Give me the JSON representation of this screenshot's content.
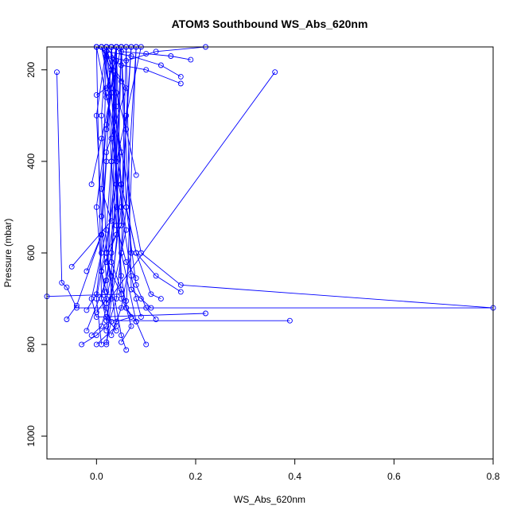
{
  "chart_data": {
    "type": "line",
    "title": "ATOM3 Southbound WS_Abs_620nm",
    "xlabel": "WS_Abs_620nm",
    "ylabel": "Pressure (mbar)",
    "xlim": [
      -0.1,
      0.8
    ],
    "ylim": [
      1050,
      150
    ],
    "y_reversed": true,
    "x_ticks": [
      0.0,
      0.2,
      0.4,
      0.6,
      0.8
    ],
    "x_tick_labels": [
      "0.0",
      "0.2",
      "0.4",
      "0.6",
      "0.8"
    ],
    "y_ticks": [
      200,
      400,
      600,
      800,
      1000
    ],
    "y_tick_labels": [
      "200",
      "400",
      "600",
      "800",
      "1000"
    ],
    "grid": false,
    "marker": "open-circle",
    "color": "#0000ff",
    "series": [
      {
        "x": [
          -0.08,
          -0.07,
          -0.06,
          -0.04,
          0.8,
          0.17,
          0.09,
          0.01
        ],
        "y": [
          205,
          665,
          675,
          720,
          720,
          670,
          600,
          150
        ]
      },
      {
        "x": [
          0.36,
          0.02,
          0.01,
          0.0,
          0.02,
          0.03,
          0.01
        ],
        "y": [
          205,
          710,
          640,
          500,
          330,
          250,
          150
        ]
      },
      {
        "x": [
          0.39,
          0.02,
          0.01,
          0.03,
          0.05,
          0.02,
          0.0
        ],
        "y": [
          748,
          748,
          700,
          600,
          380,
          260,
          150
        ]
      },
      {
        "x": [
          0.22,
          0.0,
          -0.01,
          0.02,
          0.03,
          0.04,
          0.03
        ],
        "y": [
          732,
          740,
          700,
          550,
          400,
          280,
          150
        ]
      },
      {
        "x": [
          -0.1,
          0.05,
          0.02,
          0.04,
          0.04
        ],
        "y": [
          695,
          690,
          620,
          500,
          150
        ]
      },
      {
        "x": [
          -0.06,
          -0.04,
          0.01,
          0.02,
          0.06,
          0.01
        ],
        "y": [
          745,
          715,
          560,
          380,
          240,
          150
        ]
      },
      {
        "x": [
          -0.05,
          0.03,
          0.01,
          0.02,
          0.04
        ],
        "y": [
          630,
          530,
          460,
          320,
          150
        ]
      },
      {
        "x": [
          0.0,
          0.04,
          0.02,
          0.01,
          0.02
        ],
        "y": [
          800,
          760,
          600,
          300,
          150
        ]
      },
      {
        "x": [
          0.02,
          0.03,
          0.05,
          0.02,
          0.04
        ],
        "y": [
          800,
          700,
          450,
          250,
          150
        ]
      },
      {
        "x": [
          0.01,
          0.0,
          0.04,
          0.03,
          0.05
        ],
        "y": [
          800,
          700,
          450,
          240,
          150
        ]
      },
      {
        "x": [
          -0.03,
          0.0,
          0.02,
          0.05,
          0.07
        ],
        "y": [
          800,
          780,
          760,
          500,
          150
        ]
      },
      {
        "x": [
          0.06,
          0.05,
          0.02,
          0.04,
          0.03
        ],
        "y": [
          812,
          780,
          600,
          400,
          150
        ]
      },
      {
        "x": [
          0.1,
          0.08,
          0.05,
          0.06,
          0.07
        ],
        "y": [
          800,
          750,
          600,
          300,
          150
        ]
      },
      {
        "x": [
          -0.02,
          0.02,
          0.01,
          0.0,
          0.02
        ],
        "y": [
          770,
          660,
          520,
          300,
          150
        ]
      },
      {
        "x": [
          0.04,
          0.02,
          0.06,
          0.03,
          0.04
        ],
        "y": [
          770,
          740,
          550,
          350,
          150
        ]
      },
      {
        "x": [
          0.08,
          0.06,
          0.05,
          0.04,
          0.09
        ],
        "y": [
          750,
          720,
          650,
          400,
          150
        ]
      },
      {
        "x": [
          0.09,
          0.08,
          0.07,
          0.05,
          0.04
        ],
        "y": [
          740,
          700,
          650,
          500,
          150
        ]
      },
      {
        "x": [
          0.12,
          0.1,
          0.08,
          0.06,
          0.05
        ],
        "y": [
          745,
          720,
          670,
          500,
          150
        ]
      },
      {
        "x": [
          0.13,
          0.11,
          0.08,
          0.05,
          0.03
        ],
        "y": [
          700,
          690,
          600,
          450,
          150
        ]
      },
      {
        "x": [
          0.17,
          0.12,
          0.08,
          0.05,
          0.03
        ],
        "y": [
          685,
          650,
          600,
          450,
          150
        ]
      },
      {
        "x": [
          0.08,
          0.06,
          0.04,
          0.03,
          0.02
        ],
        "y": [
          655,
          620,
          540,
          400,
          150
        ]
      },
      {
        "x": [
          0.19,
          0.15,
          0.1,
          0.05,
          0.03
        ],
        "y": [
          178,
          170,
          165,
          160,
          150
        ]
      },
      {
        "x": [
          0.17,
          0.1,
          0.05,
          0.02,
          0.01
        ],
        "y": [
          230,
          200,
          190,
          170,
          150
        ]
      },
      {
        "x": [
          0.17,
          0.13,
          0.07,
          0.02,
          0.0
        ],
        "y": [
          215,
          190,
          170,
          160,
          150
        ]
      },
      {
        "x": [
          0.22,
          0.12,
          0.06,
          0.02
        ],
        "y": [
          150,
          160,
          180,
          170
        ]
      },
      {
        "x": [
          0.08,
          0.06,
          0.04,
          0.02
        ],
        "y": [
          430,
          330,
          250,
          150
        ]
      },
      {
        "x": [
          -0.01,
          0.01,
          0.03,
          0.02
        ],
        "y": [
          450,
          350,
          250,
          150
        ]
      },
      {
        "x": [
          0.0,
          0.02,
          0.03,
          0.01
        ],
        "y": [
          255,
          240,
          200,
          150
        ]
      },
      {
        "x": [
          0.05,
          0.03,
          0.04,
          0.02
        ],
        "y": [
          225,
          200,
          180,
          150
        ]
      },
      {
        "x": [
          -0.02,
          0.01,
          0.02,
          0.03
        ],
        "y": [
          640,
          560,
          400,
          150
        ]
      },
      {
        "x": [
          0.02,
          0.04,
          0.06,
          0.08
        ],
        "y": [
          770,
          700,
          500,
          150
        ]
      },
      {
        "x": [
          0.03,
          0.05,
          0.07,
          0.05
        ],
        "y": [
          780,
          720,
          600,
          150
        ]
      },
      {
        "x": [
          -0.01,
          0.01,
          0.02,
          0.04
        ],
        "y": [
          780,
          760,
          720,
          150
        ]
      },
      {
        "x": [
          0.0,
          0.02,
          0.03,
          0.05
        ],
        "y": [
          730,
          700,
          650,
          150
        ]
      },
      {
        "x": [
          -0.02,
          0.0,
          0.01,
          0.02
        ],
        "y": [
          725,
          690,
          600,
          150
        ]
      },
      {
        "x": [
          0.11,
          0.09,
          0.07,
          0.06
        ],
        "y": [
          720,
          700,
          680,
          150
        ]
      },
      {
        "x": [
          0.04,
          0.07,
          0.05,
          0.03
        ],
        "y": [
          750,
          740,
          700,
          150
        ]
      },
      {
        "x": [
          0.03,
          0.02,
          0.05,
          0.06
        ],
        "y": [
          650,
          600,
          540,
          150
        ]
      },
      {
        "x": [
          0.02,
          0.01,
          0.04,
          0.05
        ],
        "y": [
          685,
          640,
          560,
          150
        ]
      },
      {
        "x": [
          0.06,
          0.05,
          0.03,
          0.04
        ],
        "y": [
          705,
          680,
          620,
          150
        ]
      },
      {
        "x": [
          0.05,
          0.07,
          0.06,
          0.08
        ],
        "y": [
          795,
          760,
          720,
          150
        ]
      },
      {
        "x": [
          0.02,
          0.03,
          0.01,
          0.0
        ],
        "y": [
          795,
          750,
          700,
          150
        ]
      }
    ]
  }
}
